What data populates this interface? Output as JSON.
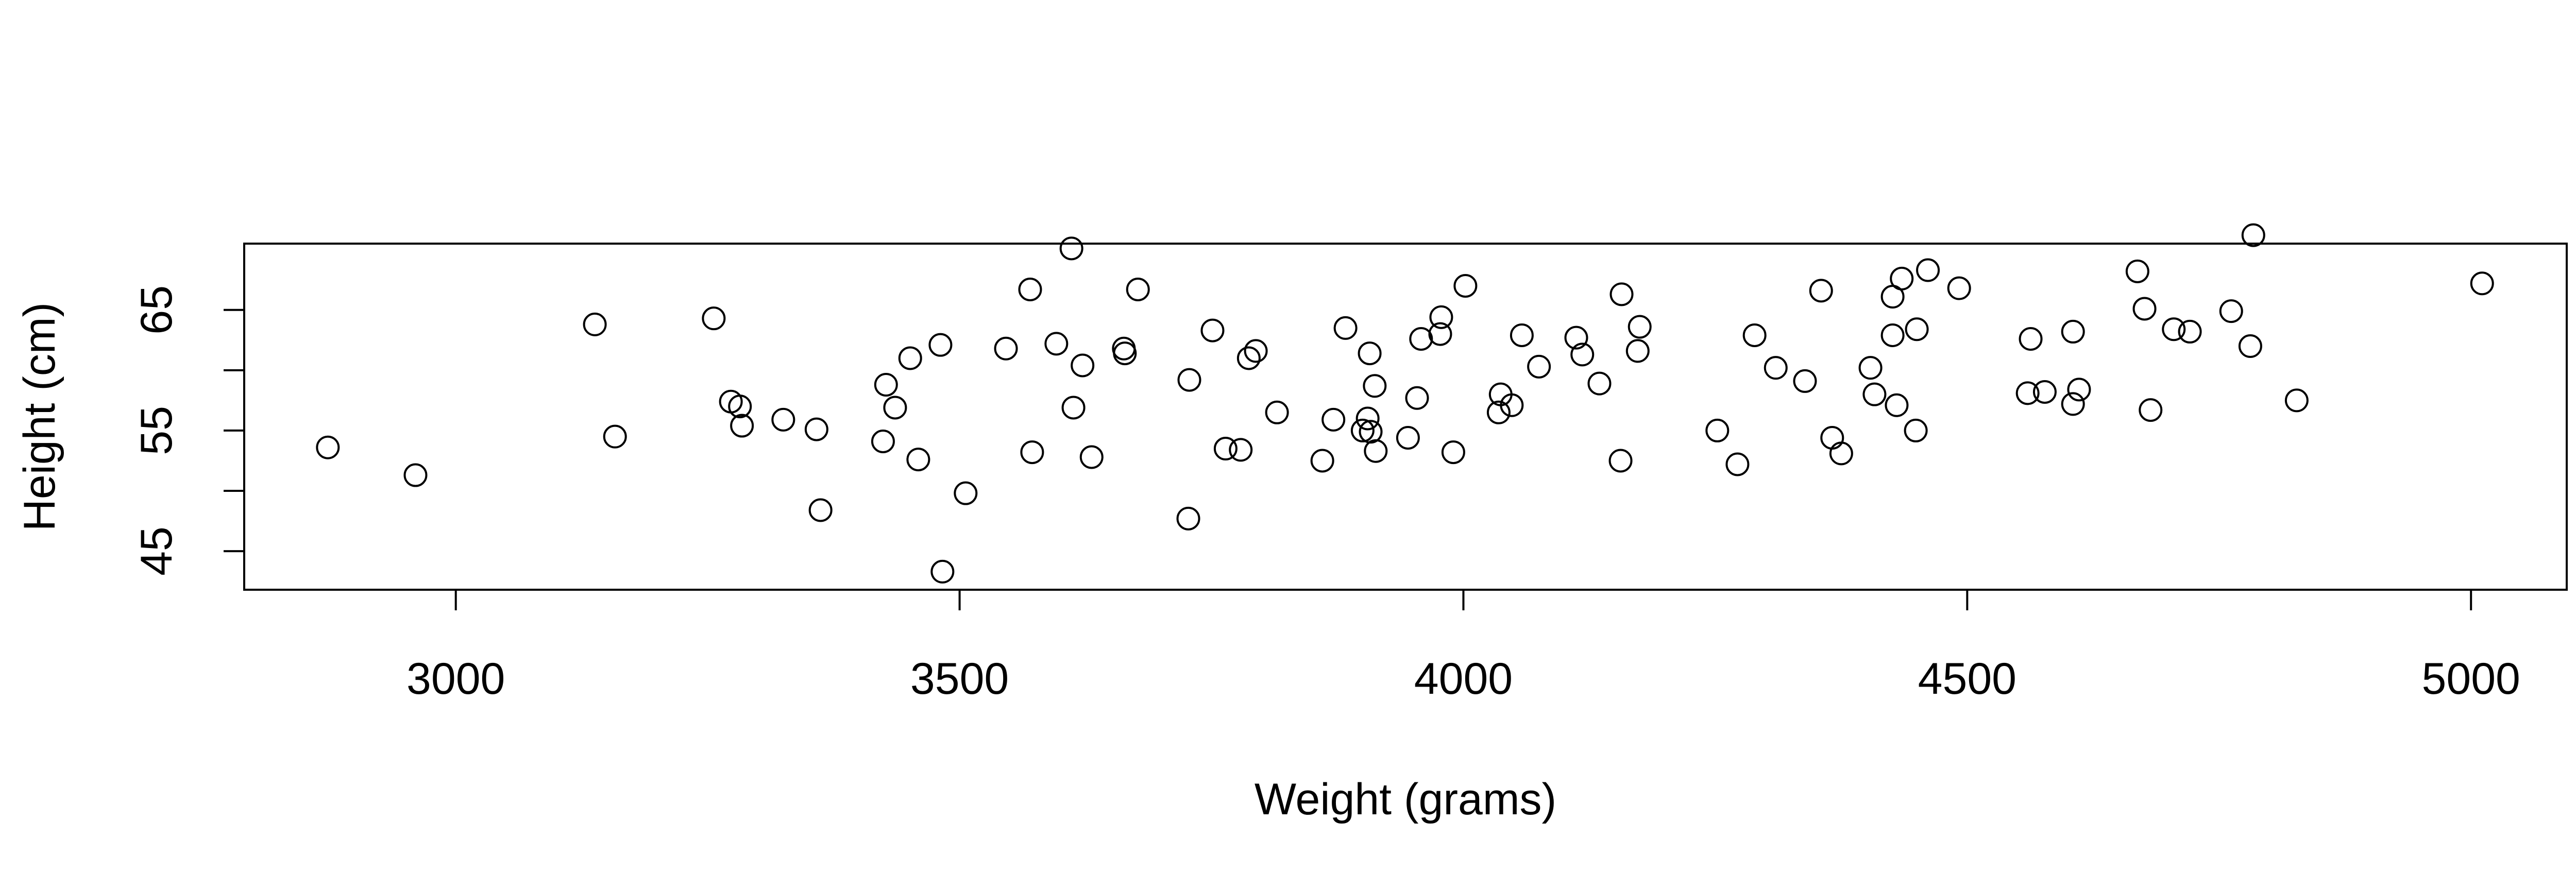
{
  "chart_data": {
    "type": "scatter",
    "title": "",
    "xlabel": "Weight (grams)",
    "ylabel": "Height (cm)",
    "xlim": [
      2790,
      5095
    ],
    "ylim": [
      41.8,
      70.5
    ],
    "xticks": [
      3000,
      3500,
      4000,
      4500,
      5000
    ],
    "yticks": [
      45,
      50,
      55,
      60,
      65
    ],
    "ytick_labels": [
      "45",
      "",
      "55",
      "",
      "65"
    ],
    "grid": false,
    "legend": "none",
    "marker": "open-circle",
    "series": [
      {
        "points": [
          [
            2873,
            53.6
          ],
          [
            2960,
            51.3
          ],
          [
            3138,
            63.8
          ],
          [
            3158,
            54.5
          ],
          [
            3256,
            64.3
          ],
          [
            3273,
            57.4
          ],
          [
            3282,
            57.0
          ],
          [
            3284,
            55.4
          ],
          [
            3325,
            55.9
          ],
          [
            3358,
            55.1
          ],
          [
            3362,
            48.4
          ],
          [
            3424,
            54.1
          ],
          [
            3427,
            58.8
          ],
          [
            3436,
            56.9
          ],
          [
            3451,
            61.0
          ],
          [
            3459,
            52.6
          ],
          [
            3481,
            62.1
          ],
          [
            3483,
            43.3
          ],
          [
            3506,
            49.8
          ],
          [
            3546,
            61.8
          ],
          [
            3570,
            66.7
          ],
          [
            3572,
            53.2
          ],
          [
            3596,
            62.2
          ],
          [
            3611,
            70.1
          ],
          [
            3613,
            56.9
          ],
          [
            3622,
            60.4
          ],
          [
            3631,
            52.8
          ],
          [
            3663,
            61.8
          ],
          [
            3664,
            61.4
          ],
          [
            3677,
            66.7
          ],
          [
            3727,
            47.7
          ],
          [
            3728,
            59.2
          ],
          [
            3751,
            63.3
          ],
          [
            3764,
            53.5
          ],
          [
            3779,
            53.4
          ],
          [
            3787,
            61.0
          ],
          [
            3794,
            61.6
          ],
          [
            3815,
            56.5
          ],
          [
            3860,
            52.5
          ],
          [
            3871,
            55.9
          ],
          [
            3883,
            63.5
          ],
          [
            3900,
            55.0
          ],
          [
            3905,
            56.0
          ],
          [
            3907,
            61.4
          ],
          [
            3908,
            54.9
          ],
          [
            3912,
            58.7
          ],
          [
            3913,
            53.3
          ],
          [
            3945,
            54.4
          ],
          [
            3954,
            57.7
          ],
          [
            3958,
            62.6
          ],
          [
            3977,
            63.0
          ],
          [
            3978,
            64.4
          ],
          [
            3990,
            53.2
          ],
          [
            4002,
            67.0
          ],
          [
            4035,
            56.5
          ],
          [
            4037,
            58.0
          ],
          [
            4048,
            57.1
          ],
          [
            4058,
            62.9
          ],
          [
            4075,
            60.3
          ],
          [
            4112,
            62.7
          ],
          [
            4118,
            61.3
          ],
          [
            4135,
            58.9
          ],
          [
            4156,
            52.5
          ],
          [
            4157,
            66.3
          ],
          [
            4173,
            61.6
          ],
          [
            4175,
            63.6
          ],
          [
            4252,
            55.0
          ],
          [
            4272,
            52.2
          ],
          [
            4289,
            62.9
          ],
          [
            4310,
            60.2
          ],
          [
            4339,
            59.1
          ],
          [
            4355,
            66.6
          ],
          [
            4366,
            54.4
          ],
          [
            4375,
            53.1
          ],
          [
            4404,
            60.2
          ],
          [
            4408,
            58.0
          ],
          [
            4426,
            66.1
          ],
          [
            4426,
            62.9
          ],
          [
            4430,
            57.1
          ],
          [
            4435,
            67.6
          ],
          [
            4449,
            55.0
          ],
          [
            4450,
            63.4
          ],
          [
            4461,
            68.3
          ],
          [
            4492,
            66.8
          ],
          [
            4560,
            58.1
          ],
          [
            4563,
            62.6
          ],
          [
            4577,
            58.2
          ],
          [
            4605,
            63.2
          ],
          [
            4605,
            57.2
          ],
          [
            4611,
            58.4
          ],
          [
            4669,
            68.2
          ],
          [
            4676,
            65.1
          ],
          [
            4682,
            56.7
          ],
          [
            4705,
            63.4
          ],
          [
            4721,
            63.2
          ],
          [
            4762,
            64.9
          ],
          [
            4781,
            62.0
          ],
          [
            4784,
            71.2
          ],
          [
            4827,
            57.5
          ],
          [
            5011,
            67.2
          ]
        ]
      }
    ]
  }
}
